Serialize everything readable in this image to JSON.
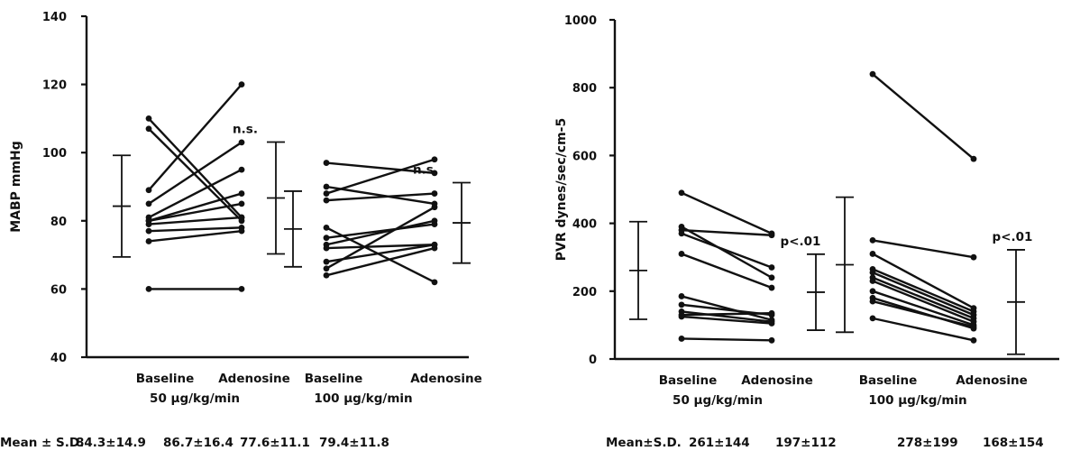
{
  "chart_data": [
    {
      "type": "line",
      "ylabel": "MABP  mmHg",
      "ylim": [
        40,
        140
      ],
      "yticks": [
        "40",
        "60",
        "80",
        "100",
        "120",
        "140"
      ],
      "x_labels": [
        {
          "top": "Baseline",
          "bottom": "50  µg/kg/min"
        },
        {
          "top": "Adenosine",
          "bottom": ""
        },
        {
          "top": "Baseline",
          "bottom": "100  µg/kg/min"
        },
        {
          "top": "Adenosine",
          "bottom": ""
        }
      ],
      "groups": [
        {
          "dose": "50 µg/kg/min",
          "pairs": [
            [
              110,
              81
            ],
            [
              107,
              80
            ],
            [
              89,
              120
            ],
            [
              85,
              103
            ],
            [
              81,
              95
            ],
            [
              80,
              88
            ],
            [
              80,
              85
            ],
            [
              79,
              81
            ],
            [
              77,
              78
            ],
            [
              74,
              77
            ],
            [
              60,
              60
            ]
          ],
          "baseline_sd": {
            "mean": 84.3,
            "sd": 14.9
          },
          "adenosine_sd": {
            "mean": 86.7,
            "sd": 16.4
          },
          "annotation": "n.s."
        },
        {
          "dose": "100 µg/kg/min",
          "pairs": [
            [
              97,
              94
            ],
            [
              90,
              85
            ],
            [
              88,
              98
            ],
            [
              86,
              88
            ],
            [
              78,
              62
            ],
            [
              75,
              79
            ],
            [
              73,
              80
            ],
            [
              72,
              73
            ],
            [
              68,
              73
            ],
            [
              66,
              84
            ],
            [
              64,
              72
            ]
          ],
          "baseline_sd": {
            "mean": 77.6,
            "sd": 11.1
          },
          "adenosine_sd": {
            "mean": 79.4,
            "sd": 11.8
          },
          "annotation": "n.s."
        }
      ],
      "stats_label": "Mean  ±  S.D.",
      "stats": [
        "84.3±14.9",
        "86.7±16.4",
        "77.6±11.1",
        "79.4±11.8"
      ]
    },
    {
      "type": "line",
      "ylabel": "PVR  dynes/sec/cm-5",
      "ylim": [
        0,
        1000
      ],
      "yticks": [
        "0",
        "200",
        "400",
        "600",
        "800",
        "1000"
      ],
      "x_labels": [
        {
          "top": "Baseline",
          "bottom": "50  µg/kg/min"
        },
        {
          "top": "Adenosine",
          "bottom": ""
        },
        {
          "top": "Baseline",
          "bottom": "100  µg/kg/min"
        },
        {
          "top": "Adenosine",
          "bottom": ""
        }
      ],
      "groups": [
        {
          "dose": "50 µg/kg/min",
          "pairs": [
            [
              490,
              370
            ],
            [
              390,
              240
            ],
            [
              380,
              365
            ],
            [
              370,
              270
            ],
            [
              310,
              210
            ],
            [
              185,
              115
            ],
            [
              160,
              130
            ],
            [
              140,
              110
            ],
            [
              130,
              135
            ],
            [
              125,
              105
            ],
            [
              60,
              55
            ]
          ],
          "baseline_sd": {
            "mean": 261,
            "sd": 144
          },
          "adenosine_sd": {
            "mean": 197,
            "sd": 112
          },
          "annotation": "p<.01"
        },
        {
          "dose": "100 µg/kg/min",
          "pairs": [
            [
              840,
              590
            ],
            [
              350,
              300
            ],
            [
              310,
              150
            ],
            [
              265,
              140
            ],
            [
              255,
              130
            ],
            [
              240,
              120
            ],
            [
              230,
              110
            ],
            [
              200,
              100
            ],
            [
              180,
              90
            ],
            [
              170,
              95
            ],
            [
              120,
              55
            ]
          ],
          "baseline_sd": {
            "mean": 278,
            "sd": 199
          },
          "adenosine_sd": {
            "mean": 168,
            "sd": 154
          },
          "annotation": "p<.01"
        }
      ],
      "stats_label": "Mean±S.D.",
      "stats": [
        "261±144",
        "197±112",
        "278±199",
        "168±154"
      ]
    }
  ]
}
